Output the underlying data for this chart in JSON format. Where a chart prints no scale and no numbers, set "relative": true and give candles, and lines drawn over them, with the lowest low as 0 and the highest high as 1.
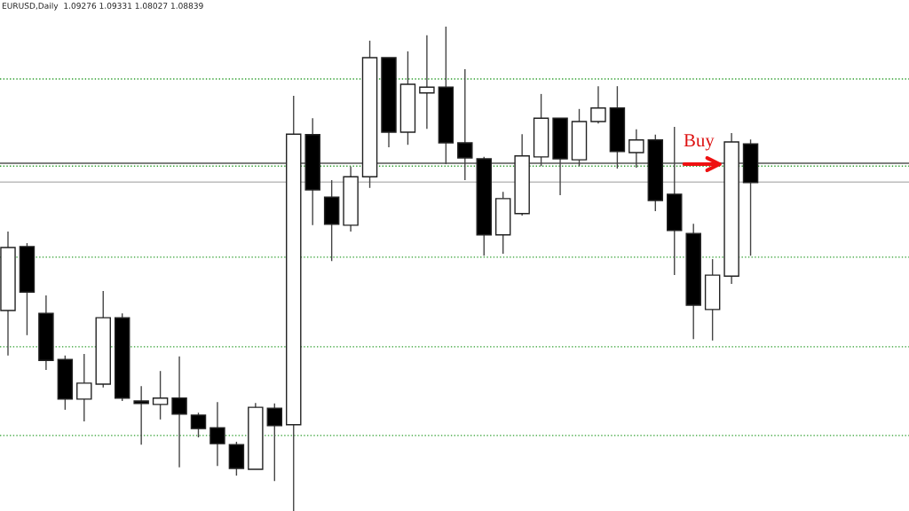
{
  "chart_data": {
    "type": "candlestick",
    "relative": true,
    "title": "EURUSD,Daily  1.09276 1.09331 1.08027 1.08839",
    "annotations": [
      "Buy"
    ],
    "categories": [
      null,
      null,
      null,
      null,
      null,
      null,
      null,
      null,
      null,
      null,
      null,
      null,
      null,
      null,
      null,
      null,
      null,
      null,
      null,
      null,
      null,
      null,
      null,
      null,
      null,
      null,
      null,
      null,
      null,
      null,
      null,
      null,
      null,
      null,
      null,
      null,
      null,
      null,
      null,
      null
    ],
    "ohlc": [
      [
        0.414,
        0.577,
        0.321,
        0.544
      ],
      [
        0.546,
        0.553,
        0.363,
        0.452
      ],
      [
        0.408,
        0.445,
        0.291,
        0.311
      ],
      [
        0.313,
        0.321,
        0.209,
        0.231
      ],
      [
        0.231,
        0.324,
        0.185,
        0.264
      ],
      [
        0.262,
        0.454,
        0.255,
        0.399
      ],
      [
        0.399,
        0.408,
        0.227,
        0.233
      ],
      [
        0.227,
        0.258,
        0.137,
        0.222
      ],
      [
        0.22,
        0.289,
        0.189,
        0.233
      ],
      [
        0.233,
        0.319,
        0.09,
        0.2
      ],
      [
        0.198,
        0.203,
        0.152,
        0.17
      ],
      [
        0.172,
        0.225,
        0.093,
        0.139
      ],
      [
        0.137,
        0.143,
        0.073,
        0.088
      ],
      [
        0.086,
        0.223,
        0.086,
        0.214
      ],
      [
        0.212,
        0.222,
        0.062,
        0.176
      ],
      [
        0.178,
        0.857,
        0.0,
        0.778
      ],
      [
        0.777,
        0.811,
        0.59,
        0.663
      ],
      [
        0.648,
        0.683,
        0.516,
        0.592
      ],
      [
        0.59,
        0.711,
        0.577,
        0.69
      ],
      [
        0.69,
        0.971,
        0.667,
        0.936
      ],
      [
        0.936,
        0.936,
        0.751,
        0.782
      ],
      [
        0.782,
        0.949,
        0.756,
        0.881
      ],
      [
        0.863,
        0.982,
        0.789,
        0.875
      ],
      [
        0.875,
        1.0,
        0.716,
        0.76
      ],
      [
        0.76,
        0.912,
        0.683,
        0.729
      ],
      [
        0.727,
        0.731,
        0.527,
        0.57
      ],
      [
        0.57,
        0.659,
        0.531,
        0.645
      ],
      [
        0.614,
        0.778,
        0.61,
        0.733
      ],
      [
        0.731,
        0.861,
        0.712,
        0.811
      ],
      [
        0.811,
        0.811,
        0.652,
        0.727
      ],
      [
        0.725,
        0.83,
        0.712,
        0.804
      ],
      [
        0.804,
        0.877,
        0.8,
        0.832
      ],
      [
        0.832,
        0.877,
        0.707,
        0.742
      ],
      [
        0.74,
        0.788,
        0.709,
        0.766
      ],
      [
        0.766,
        0.777,
        0.619,
        0.641
      ],
      [
        0.654,
        0.793,
        0.487,
        0.579
      ],
      [
        0.573,
        0.593,
        0.355,
        0.425
      ],
      [
        0.416,
        0.52,
        0.352,
        0.487
      ],
      [
        0.485,
        0.78,
        0.469,
        0.762
      ],
      [
        0.758,
        0.767,
        0.527,
        0.678
      ]
    ],
    "colors": [
      "#ffffff",
      "#000000",
      "#000000",
      "#000000",
      "#ffffff",
      "#ffffff",
      "#000000",
      "#000000",
      "#ffffff",
      "#000000",
      "#000000",
      "#000000",
      "#000000",
      "#ffffff",
      "#000000",
      "#ffffff",
      "#000000",
      "#000000",
      "#ffffff",
      "#ffffff",
      "#000000",
      "#ffffff",
      "#ffffff",
      "#000000",
      "#000000",
      "#000000",
      "#ffffff",
      "#ffffff",
      "#ffffff",
      "#000000",
      "#ffffff",
      "#ffffff",
      "#000000",
      "#ffffff",
      "#000000",
      "#000000",
      "#000000",
      "#ffffff",
      "#ffffff",
      "#000000"
    ],
    "ref_lines": [
      {
        "axis": "y",
        "value": 0.892,
        "color": "#2e9e2e",
        "line_style": "dotted"
      },
      {
        "axis": "y",
        "value": 0.712,
        "color": "#2e9e2e",
        "line_style": "dotted"
      },
      {
        "axis": "y",
        "value": 0.524,
        "color": "#2e9e2e",
        "line_style": "dotted"
      },
      {
        "axis": "y",
        "value": 0.339,
        "color": "#2e9e2e",
        "line_style": "dotted"
      },
      {
        "axis": "y",
        "value": 0.156,
        "color": "#2e9e2e",
        "line_style": "dotted"
      },
      {
        "axis": "y",
        "value": 0.718,
        "color": "#555555",
        "line_style": "solid"
      },
      {
        "axis": "y",
        "value": 0.679,
        "color": "#bbbbbb",
        "line_style": "solid"
      }
    ],
    "grid": false,
    "legend": false
  }
}
